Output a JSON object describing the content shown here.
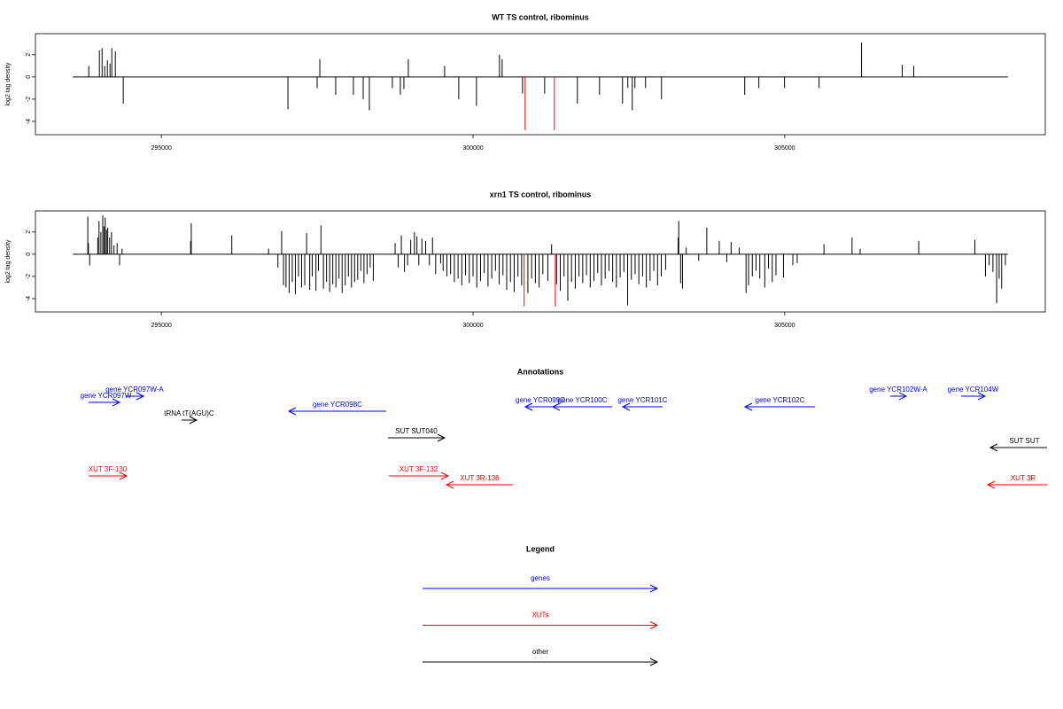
{
  "chart_data": [
    {
      "type": "spike",
      "title": "WT TS control, ribominus",
      "y_label": "log2 tag density",
      "xlim": [
        292980,
        309180
      ],
      "xticks": [
        295000,
        300000,
        305000
      ],
      "ylim": [
        -5.2,
        3.9
      ],
      "yticks": [
        -4,
        -2,
        0,
        2
      ],
      "series": [
        {
          "color": "#000000",
          "x": [
            293836,
            294006,
            294049,
            294091,
            294134,
            294176,
            294205,
            294262,
            294389,
            297031,
            297499,
            297542,
            297797,
            298081,
            298238,
            298337,
            298706,
            298834,
            298891,
            298962,
            299544,
            299771,
            300055,
            300424,
            300467,
            300794,
            301149,
            301674,
            302029,
            302398,
            302483,
            302554,
            302597,
            302767,
            303023,
            304358,
            304585,
            304997,
            305551,
            306232,
            306885,
            307070
          ],
          "values": [
            1.0,
            2.4,
            2.6,
            1.0,
            1.5,
            1.2,
            2.6,
            2.3,
            -2.4,
            -2.9,
            -1.0,
            1.6,
            -1.6,
            -1.6,
            -2.0,
            -3.0,
            -1.0,
            -1.6,
            -1.1,
            1.6,
            1.0,
            -2.0,
            -2.6,
            2.0,
            1.6,
            -1.5,
            -1.5,
            -2.4,
            -1.6,
            -2.4,
            -1.0,
            -3.0,
            -1.0,
            -1.0,
            -2.0,
            -1.6,
            -1.0,
            -1.0,
            -1.0,
            3.1,
            1.1,
            1.0
          ]
        },
        {
          "color": "#ff0000",
          "x": [
            300836,
            301305
          ],
          "values": [
            -4.8,
            -4.8
          ]
        }
      ]
    },
    {
      "type": "spike",
      "title": "xrn1 TS control, ribominus",
      "y_label": "log2 tag density",
      "xlim": [
        292980,
        309180
      ],
      "xticks": [
        295000,
        300000,
        305000
      ],
      "ylim": [
        -5.2,
        3.9
      ],
      "yticks": [
        -4,
        -2,
        0,
        2
      ],
      "series": [
        {
          "color": "#000000",
          "x": [
            293820,
            293830,
            293850,
            293980,
            294000,
            294030,
            294060,
            294080,
            294100,
            294120,
            294140,
            294170,
            294200,
            294240,
            294290,
            294330,
            294370,
            295470,
            295480,
            296130,
            296720,
            296870,
            296930,
            296960,
            297000,
            297050,
            297100,
            297150,
            297200,
            297250,
            297300,
            297330,
            297380,
            297420,
            297480,
            297520,
            297560,
            297600,
            297650,
            297700,
            297750,
            297800,
            297850,
            297900,
            297950,
            298000,
            298050,
            298100,
            298150,
            298200,
            298250,
            298300,
            298350,
            298400,
            298750,
            298800,
            298850,
            298900,
            298950,
            299000,
            299060,
            299100,
            299130,
            299180,
            299240,
            299300,
            299350,
            299400,
            299480,
            299520,
            299580,
            299640,
            299700,
            299760,
            299820,
            299880,
            299940,
            300000,
            300060,
            300120,
            300180,
            300240,
            300300,
            300360,
            300420,
            300480,
            300540,
            300600,
            300660,
            300720,
            300780,
            300880,
            300940,
            301000,
            301060,
            301120,
            301200,
            301260,
            301340,
            301400,
            301460,
            301520,
            301580,
            301640,
            301700,
            301760,
            301820,
            301880,
            301940,
            302000,
            302060,
            302120,
            302180,
            302240,
            302300,
            302360,
            302420,
            302480,
            302540,
            302600,
            302660,
            302720,
            302780,
            302840,
            302900,
            302960,
            303020,
            303090,
            303290,
            303300,
            303330,
            303360,
            303420,
            303620,
            303750,
            303950,
            304070,
            304140,
            304270,
            304380,
            304420,
            304480,
            304540,
            304600,
            304680,
            304740,
            304800,
            304860,
            304980,
            305130,
            305200,
            305630,
            306080,
            306210,
            307150,
            308050,
            308220,
            308280,
            308340,
            308400,
            308440,
            308480,
            308540
          ],
          "values": [
            3.4,
            1.0,
            -1.0,
            1.5,
            3.0,
            2.0,
            3.5,
            2.5,
            3.3,
            2.2,
            2.4,
            1.5,
            2.0,
            0.8,
            1.0,
            -1.0,
            0.5,
            1.2,
            2.8,
            1.7,
            0.5,
            -1.2,
            2.1,
            -2.8,
            -3.0,
            -3.5,
            -2.5,
            -3.6,
            -2.0,
            -3.0,
            -2.8,
            1.9,
            -3.2,
            -2.0,
            -3.3,
            -1.5,
            2.6,
            -3.1,
            -2.5,
            -3.4,
            -2.7,
            -3.0,
            -2.2,
            -3.5,
            -2.8,
            -2.0,
            -3.0,
            -2.5,
            -2.3,
            -1.5,
            -2.6,
            -1.8,
            -1.2,
            -2.4,
            1.0,
            -1.2,
            1.7,
            -1.6,
            -1.0,
            1.3,
            2.0,
            1.6,
            -1.0,
            1.4,
            1.2,
            -1.0,
            1.5,
            -1.8,
            -0.8,
            -1.5,
            -2.0,
            -1.8,
            -2.5,
            -2.2,
            -2.8,
            -1.9,
            -2.6,
            -2.0,
            -3.0,
            -2.4,
            -1.7,
            -2.9,
            -2.2,
            -1.5,
            -2.7,
            -1.9,
            -3.2,
            -2.5,
            -3.4,
            -2.0,
            -2.8,
            -3.5,
            -2.2,
            -2.6,
            -3.0,
            -1.8,
            -2.4,
            0.9,
            -2.7,
            -3.3,
            -2.0,
            -4.2,
            -2.5,
            -3.1,
            -2.0,
            -2.6,
            -1.9,
            -3.0,
            -2.4,
            -1.7,
            -2.8,
            -2.2,
            -1.5,
            -2.5,
            -3.0,
            -2.1,
            -1.6,
            -4.6,
            -2.3,
            -1.8,
            -2.7,
            -2.0,
            -3.0,
            -2.4,
            -1.5,
            -2.8,
            -2.0,
            -1.4,
            1.5,
            3.0,
            -2.6,
            -3.1,
            0.6,
            -0.6,
            2.4,
            1.2,
            -0.7,
            1.1,
            0.6,
            -3.5,
            -2.8,
            -2.0,
            -1.5,
            -2.2,
            -3.0,
            -1.3,
            -2.5,
            -1.9,
            -2.1,
            -1.0,
            -0.8,
            0.9,
            1.5,
            0.5,
            1.2,
            1.3,
            -2.0,
            -1.0,
            -1.6,
            -4.4,
            -2.2,
            -3.1,
            -1.0
          ]
        },
        {
          "color": "#ff0000",
          "x": [
            300820,
            301320
          ],
          "values": [
            -4.7,
            -4.7
          ]
        }
      ]
    }
  ],
  "annotations": {
    "title": "Annotations",
    "features": [
      {
        "label": "gene YCR097W",
        "color": "#0000ff",
        "start": 293833,
        "end": 294330
      },
      {
        "label": "gene YCR097W-A",
        "color": "#0000ff",
        "start": 294429,
        "end": 294714
      },
      {
        "label": "tRNA tT(AGU)C",
        "color": "#000000",
        "start": 295325,
        "end": 295566
      },
      {
        "label": "gene YCR098C",
        "color": "#0000ff",
        "start": 298607,
        "end": 297044
      },
      {
        "label": "SUT SUT040",
        "color": "#000000",
        "start": 298636,
        "end": 299545
      },
      {
        "label": "gene YCR099C",
        "color": "#0000ff",
        "start": 301321,
        "end": 300838
      },
      {
        "label": "gene YCR100C",
        "color": "#0000ff",
        "start": 302231,
        "end": 301279
      },
      {
        "label": "gene YCR101C",
        "color": "#0000ff",
        "start": 303041,
        "end": 302401
      },
      {
        "label": "gene YCR102C",
        "color": "#0000ff",
        "start": 305485,
        "end": 304362
      },
      {
        "label": "gene YCR102W-A",
        "color": "#0000ff",
        "start": 306693,
        "end": 306949
      },
      {
        "label": "gene YCR104W",
        "color": "#0000ff",
        "start": 307829,
        "end": 308213
      },
      {
        "label": "SUT SUT",
        "color": "#000000",
        "start": 309393,
        "end": 308298
      },
      {
        "label": "XUT 3F-130",
        "color": "#ff0000",
        "start": 293833,
        "end": 294444
      },
      {
        "label": "XUT 3F-132",
        "color": "#ff0000",
        "start": 298650,
        "end": 299602
      },
      {
        "label": "XUT 3R-136",
        "color": "#ff0000",
        "start": 300639,
        "end": 299573
      },
      {
        "label": "XUT 3R",
        "color": "#ff0000",
        "start": 309393,
        "end": 308256
      }
    ]
  },
  "legend": {
    "title": "Legend",
    "items": [
      {
        "label": "genes",
        "color": "#0000ff"
      },
      {
        "label": "XUTs",
        "color": "#ff0000"
      },
      {
        "label": "other",
        "color": "#000000"
      }
    ]
  }
}
